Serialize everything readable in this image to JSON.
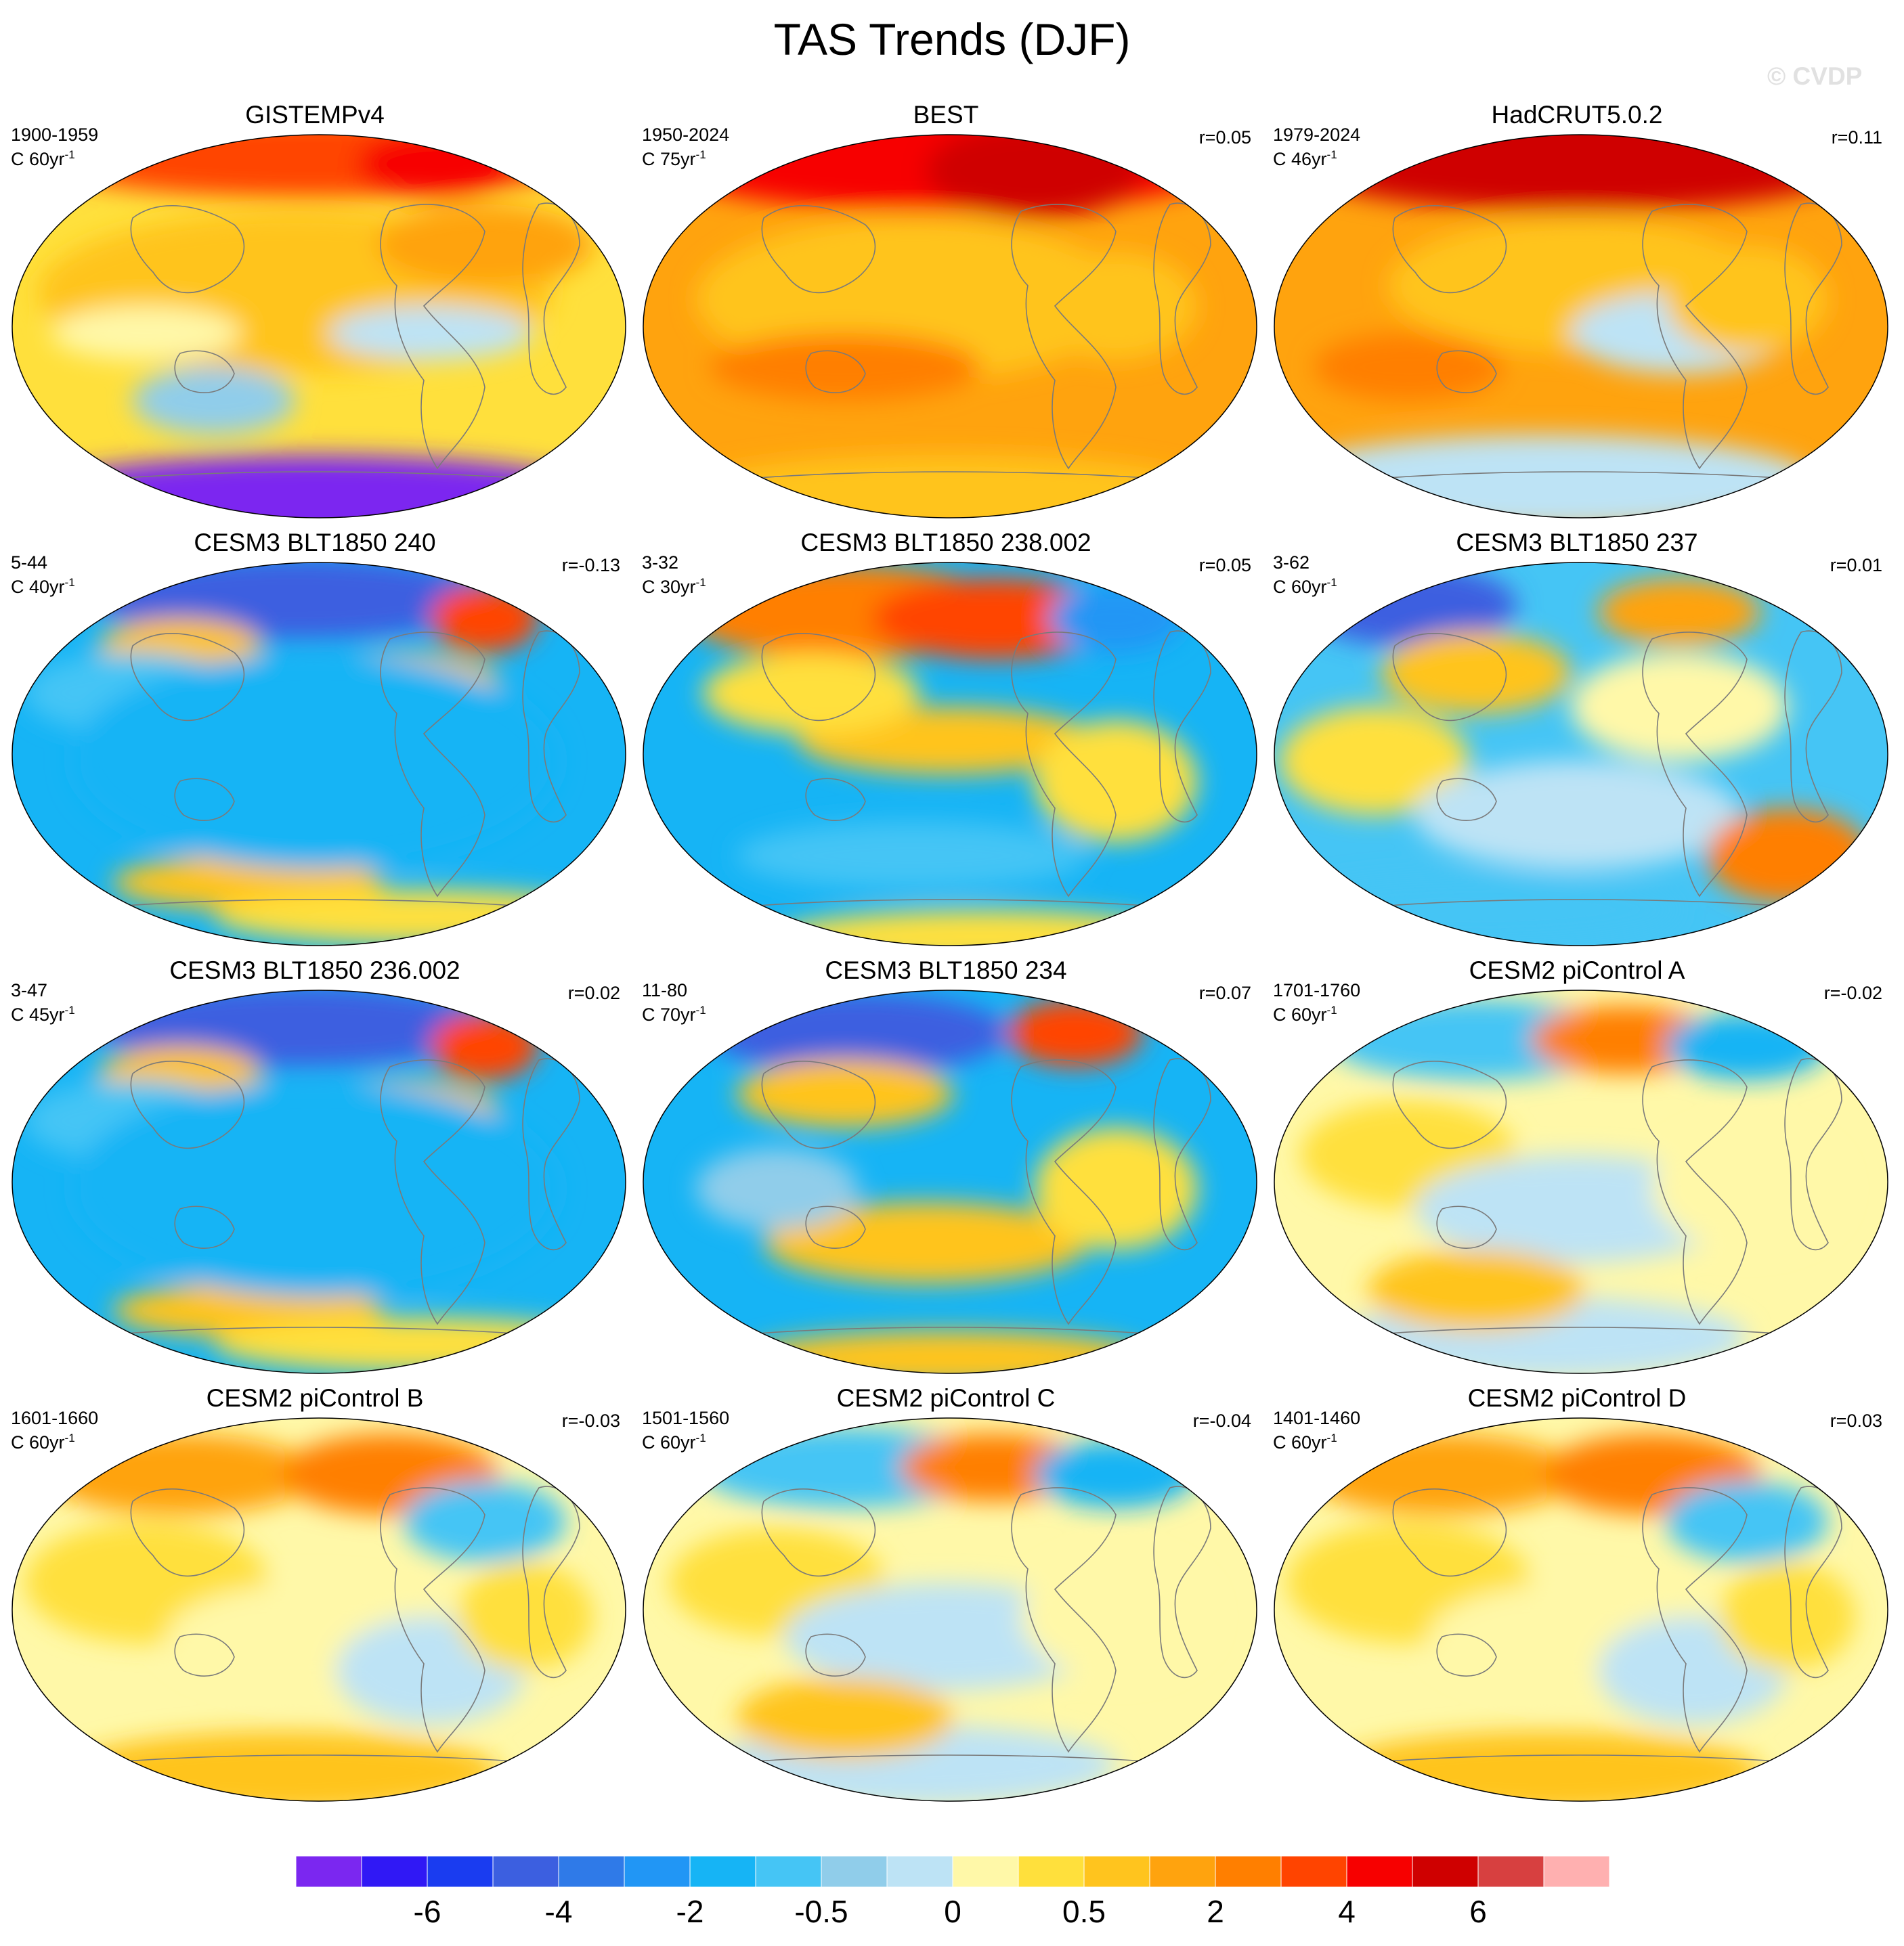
{
  "figure": {
    "title": "TAS Trends (DJF)",
    "watermark": "© CVDP"
  },
  "panels": [
    {
      "title": "GISTEMPv4",
      "years": "1900-1959",
      "scale": "C 60yr",
      "exp": "-1",
      "corr": "",
      "pattern": "gistemp"
    },
    {
      "title": "BEST",
      "years": "1950-2024",
      "scale": "C 75yr",
      "exp": "-1",
      "corr": "r=0.05",
      "pattern": "best"
    },
    {
      "title": "HadCRUT5.0.2",
      "years": "1979-2024",
      "scale": "C 46yr",
      "exp": "-1",
      "corr": "r=0.11",
      "pattern": "hadcrut"
    },
    {
      "title": "CESM3 BLT1850 240",
      "years": "5-44",
      "scale": "C 40yr",
      "exp": "-1",
      "corr": "r=-0.13",
      "pattern": "cold"
    },
    {
      "title": "CESM3 BLT1850 238.002",
      "years": "3-32",
      "scale": "C 30yr",
      "exp": "-1",
      "corr": "r=0.05",
      "pattern": "mixed-warm"
    },
    {
      "title": "CESM3 BLT1850 237",
      "years": "3-62",
      "scale": "C 60yr",
      "exp": "-1",
      "corr": "r=0.01",
      "pattern": "mixed"
    },
    {
      "title": "CESM3 BLT1850 236.002",
      "years": "3-47",
      "scale": "C 45yr",
      "exp": "-1",
      "corr": "r=0.02",
      "pattern": "cold"
    },
    {
      "title": "CESM3 BLT1850 234",
      "years": "11-80",
      "scale": "C 70yr",
      "exp": "-1",
      "corr": "r=0.07",
      "pattern": "cold2"
    },
    {
      "title": "CESM2 piControl A",
      "years": "1701-1760",
      "scale": "C 60yr",
      "exp": "-1",
      "corr": "r=-0.02",
      "pattern": "neutral"
    },
    {
      "title": "CESM2 piControl B",
      "years": "1601-1660",
      "scale": "C 60yr",
      "exp": "-1",
      "corr": "r=-0.03",
      "pattern": "neutral-warm"
    },
    {
      "title": "CESM2 piControl C",
      "years": "1501-1560",
      "scale": "C 60yr",
      "exp": "-1",
      "corr": "r=-0.04",
      "pattern": "neutral"
    },
    {
      "title": "CESM2 piControl D",
      "years": "1401-1460",
      "scale": "C 60yr",
      "exp": "-1",
      "corr": "r=0.03",
      "pattern": "neutral-warm"
    }
  ],
  "colorbar": {
    "colors": [
      "#7b27f0",
      "#3018f5",
      "#1a3cf0",
      "#3c5fe0",
      "#2f7ae8",
      "#2196f5",
      "#16b4f5",
      "#45c5f5",
      "#90cdea",
      "#bde3f5",
      "#fff8a8",
      "#ffe03c",
      "#ffc41e",
      "#ffa30e",
      "#ff7f00",
      "#ff4400",
      "#f70000",
      "#cf0000",
      "#d74040",
      "#ffb0b0"
    ],
    "labels": [
      {
        "text": "-6",
        "boundary": 2
      },
      {
        "text": "-4",
        "boundary": 4
      },
      {
        "text": "-2",
        "boundary": 6
      },
      {
        "text": "-0.5",
        "boundary": 8
      },
      {
        "text": "0",
        "boundary": 10
      },
      {
        "text": "0.5",
        "boundary": 12
      },
      {
        "text": "2",
        "boundary": 14
      },
      {
        "text": "4",
        "boundary": 16
      },
      {
        "text": "6",
        "boundary": 18
      }
    ]
  }
}
